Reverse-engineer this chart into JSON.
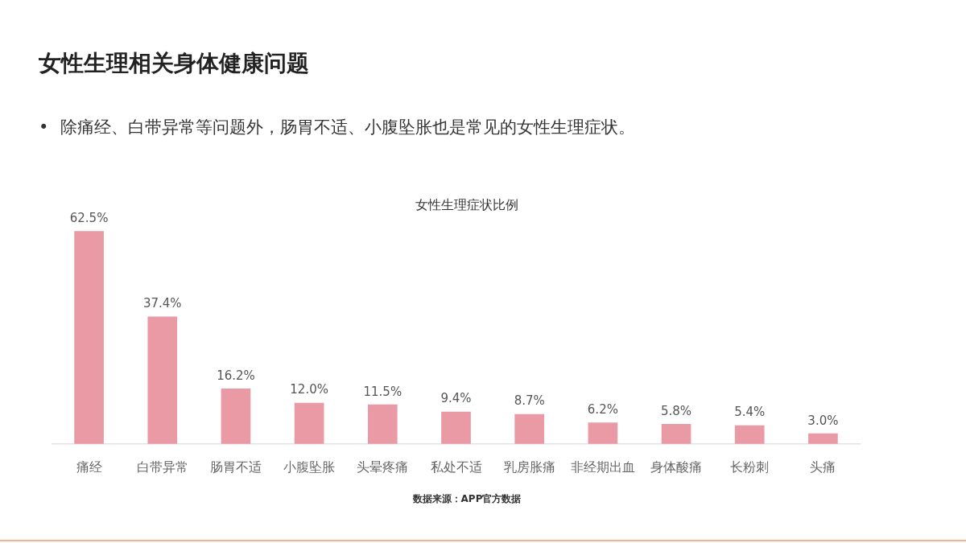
{
  "chart_data": {
    "type": "bar",
    "title": "女性生理相关身体健康问题",
    "subtitle": "• 除痛经、白带异常等问题外，肠胃不适、小腹坠胀也是常见的女性生理症状。",
    "annotations": [
      "女性生理症状比例",
      "数据来源：APP官方数据"
    ],
    "categories": [
      "痛经",
      "白带异常",
      "肠胃不适",
      "小腹坠胀",
      "头晕疼痛",
      "私处不适",
      "乳房胀痛",
      "非经期出血",
      "身体酸痛",
      "长粉刺",
      "头痛"
    ],
    "values": [
      62.5,
      37.4,
      16.2,
      12.0,
      11.5,
      9.4,
      8.7,
      6.2,
      5.8,
      5.4,
      3.0
    ],
    "value_labels": [
      "62.5%",
      "37.4%",
      "16.2%",
      "12.0%",
      "11.5%",
      "9.4%",
      "8.7%",
      "6.2%",
      "5.8%",
      "5.4%",
      "3.0%"
    ],
    "color": "#e99aa5",
    "tick_labels": "x"
  }
}
